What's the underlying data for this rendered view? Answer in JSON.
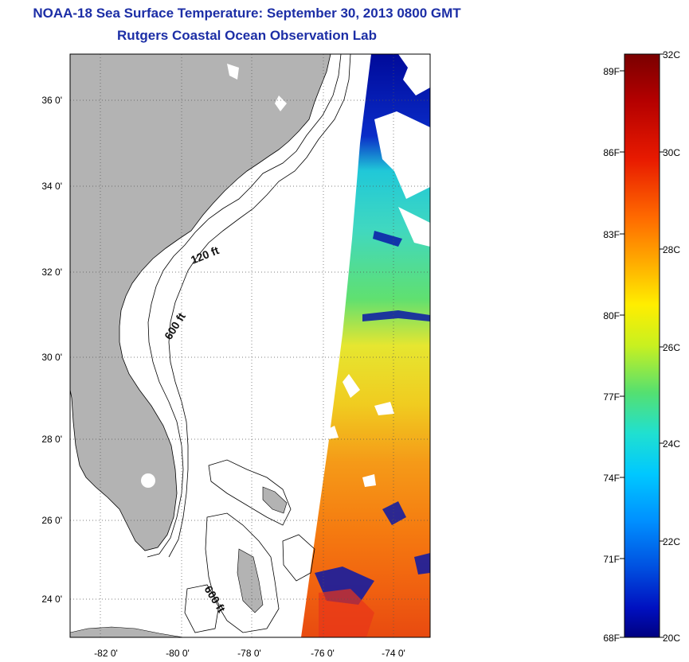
{
  "title": {
    "line1": "NOAA-18 Sea Surface Temperature:  September 30, 2013 0800 GMT",
    "line2": "Rutgers Coastal Ocean Observation Lab"
  },
  "map": {
    "lat_ticks": [
      "36 0'",
      "34 0'",
      "32 0'",
      "30 0'",
      "28 0'",
      "26 0'",
      "24 0'"
    ],
    "lon_ticks": [
      "-82 0'",
      "-80 0'",
      "-78 0'",
      "-76 0'",
      "-74 0'"
    ],
    "contour_labels": [
      "120 ft",
      "600 ft",
      "600 ft"
    ],
    "colors": {
      "land": "#b3b3b3",
      "ocean": "#ffffff",
      "grid": "#555555"
    }
  },
  "colorbar": {
    "fahrenheit_labels": [
      "89F",
      "86F",
      "83F",
      "80F",
      "77F",
      "74F",
      "71F",
      "68F"
    ],
    "celsius_labels": [
      "32C",
      "30C",
      "28C",
      "26C",
      "24C",
      "22C",
      "20C"
    ],
    "range_c": [
      20,
      32
    ]
  }
}
